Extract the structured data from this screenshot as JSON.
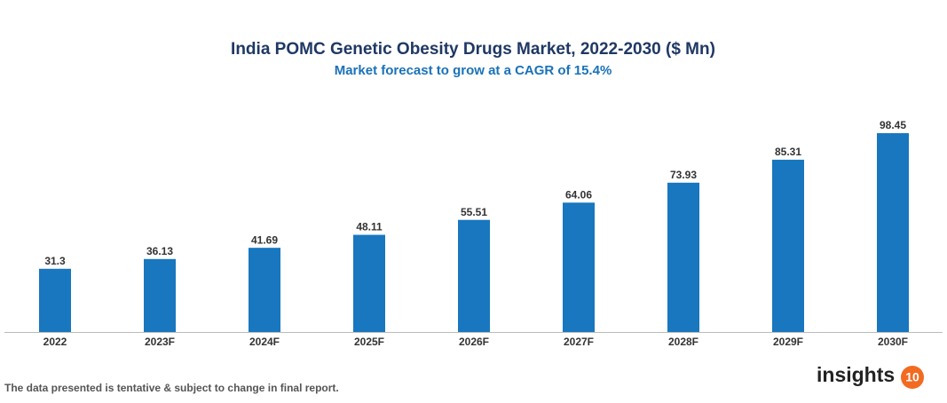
{
  "chart_data": {
    "type": "bar",
    "title": "India POMC Genetic Obesity Drugs Market, 2022-2030 ($ Mn)",
    "subtitle": "Market forecast to grow at a CAGR of 15.4%",
    "categories": [
      "2022",
      "2023F",
      "2024F",
      "2025F",
      "2026F",
      "2027F",
      "2028F",
      "2029F",
      "2030F"
    ],
    "values": [
      31.3,
      36.13,
      41.69,
      48.11,
      55.51,
      64.06,
      73.93,
      85.31,
      98.45
    ],
    "color": "#1877be",
    "ylim": [
      0,
      100
    ]
  },
  "footer": {
    "note": "The data presented is tentative & subject to change in final report.",
    "logo_text": "insights",
    "logo_badge": "10"
  }
}
